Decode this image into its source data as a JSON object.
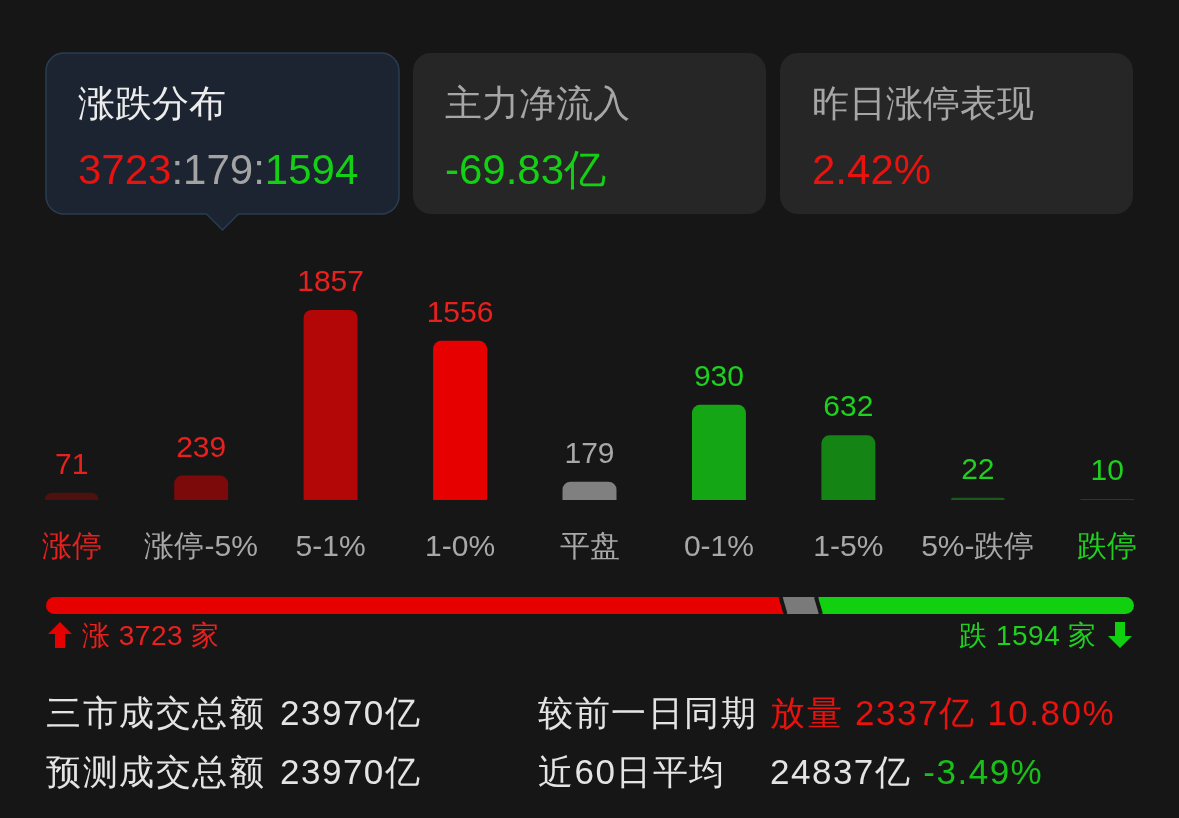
{
  "chart_data": [
    {
      "type": "other",
      "title": "涨跌分布",
      "annotations": [
        "3723",
        ":179:",
        "1594"
      ],
      "colors": [
        "#e8120e",
        "#a3a3a3",
        "#14d014"
      ]
    },
    {
      "type": "other",
      "title": "主力净流入",
      "annotations": [
        "-69.83亿"
      ],
      "colors": [
        "#14d014"
      ]
    },
    {
      "type": "other",
      "title": "昨日涨停表现",
      "annotations": [
        "2.42%"
      ],
      "colors": [
        "#e8120e"
      ]
    },
    {
      "type": "bar",
      "categories": [
        "涨停",
        "涨停-5%",
        "5-1%",
        "1-0%",
        "平盘",
        "0-1%",
        "1-5%",
        "5%-跌停",
        "跌停"
      ],
      "values": [
        71,
        239,
        1857,
        1556,
        179,
        930,
        632,
        22,
        10
      ],
      "colors": [
        "#4f1010",
        "#7c0a0a",
        "#b30606",
        "#e60000",
        "#808080",
        "#14a614",
        "#148414",
        "#1b5a1b",
        "#1a451a"
      ],
      "data_labels": true
    },
    {
      "type": "bar",
      "orientation": "horizontal",
      "stacked": true,
      "categories": [
        null
      ],
      "series": [
        {
          "color": "#e60000",
          "values": [
            3723
          ],
          "value_labels": [
            "涨 3723 家"
          ]
        },
        {
          "color": "#7a7a7a",
          "values": [
            179
          ],
          "value_labels": [
            null
          ]
        },
        {
          "color": "#10d010",
          "values": [
            1594
          ],
          "value_labels": [
            "跌 1594 家"
          ]
        }
      ]
    },
    {
      "type": "other",
      "annotations": [
        "三市成交总额",
        "23970亿",
        "较前一日同期",
        "放量",
        "2337亿",
        "10.80%"
      ],
      "colors": [
        "#e4e4e4",
        "#e4e4e4",
        "#e4e4e4",
        "#e8120e",
        "#e8120e",
        "#e8120e"
      ]
    },
    {
      "type": "other",
      "annotations": [
        "预测成交总额",
        "23970亿",
        "近60日平均",
        "24837亿",
        "-3.49%"
      ],
      "colors": [
        "#e4e4e4",
        "#e4e4e4",
        "#e4e4e4",
        "#e4e4e4",
        "#19c019"
      ]
    }
  ]
}
